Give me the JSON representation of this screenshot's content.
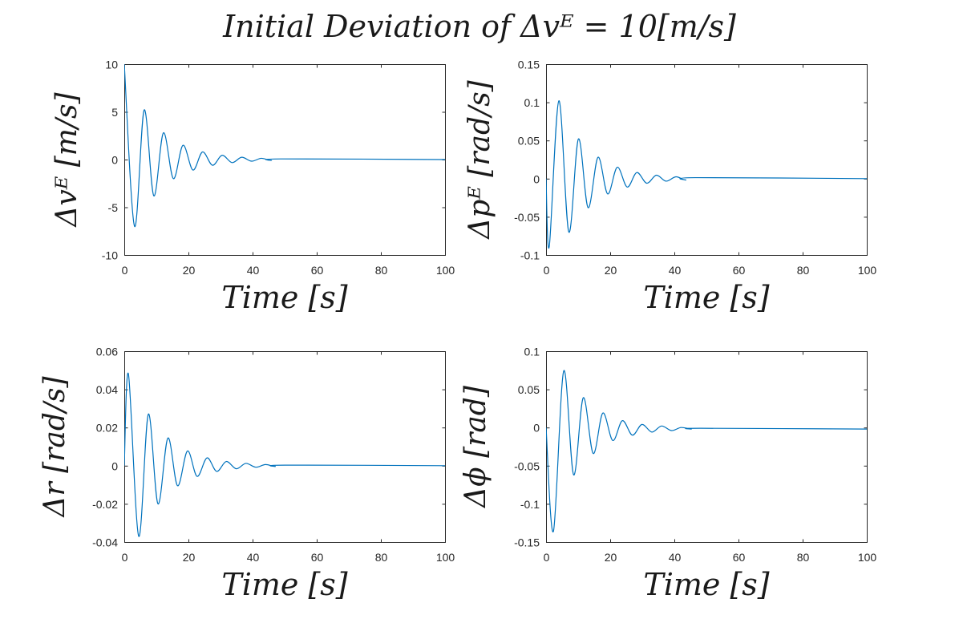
{
  "figure_title": "Initial Deviation of Δvᴱ = 10[m/s]",
  "colors": {
    "line": "#0072BD",
    "axes": "#262626",
    "background": "#ffffff"
  },
  "chart_data": [
    {
      "type": "line",
      "position": "top-left",
      "xlabel": "Time [s]",
      "ylabel": "Δvᴱ [m/s]",
      "xlim": [
        0,
        100
      ],
      "ylim": [
        -10,
        10
      ],
      "xticks": [
        0,
        20,
        40,
        60,
        80,
        100
      ],
      "yticks": [
        -10,
        -5,
        0,
        5,
        10
      ],
      "ytick_labels": [
        "-10",
        "-5",
        "0",
        "5",
        "10"
      ],
      "grid": false,
      "series": [
        {
          "x": [
            0,
            3.2,
            6.2,
            9.2,
            12.2,
            15.3,
            18.3,
            21.4,
            24.4,
            27.5,
            30.5,
            33.6,
            36.6,
            39.7,
            42.7,
            45.8,
            48.8,
            100
          ],
          "y": [
            10,
            -7.0,
            5.2,
            -3.8,
            2.8,
            -2.0,
            1.5,
            -1.1,
            0.8,
            -0.6,
            0.45,
            -0.32,
            0.24,
            -0.17,
            0.13,
            -0.09,
            0.07,
            0
          ]
        }
      ]
    },
    {
      "type": "line",
      "position": "top-right",
      "xlabel": "Time [s]",
      "ylabel": "Δpᴱ [rad/s]",
      "xlim": [
        0,
        100
      ],
      "ylim": [
        -0.1,
        0.15
      ],
      "xticks": [
        0,
        20,
        40,
        60,
        80,
        100
      ],
      "yticks": [
        -0.1,
        -0.05,
        0,
        0.05,
        0.1,
        0.15
      ],
      "ytick_labels": [
        "-0.1",
        "-0.05",
        "0",
        "0.05",
        "0.1",
        "0.15"
      ],
      "grid": false,
      "series": [
        {
          "x": [
            0,
            1.0,
            4.0,
            7.1,
            10.1,
            13.1,
            16.2,
            19.2,
            22.2,
            25.3,
            28.3,
            31.4,
            34.4,
            37.4,
            40.5,
            43.5,
            46.6,
            100
          ],
          "y": [
            0,
            -0.089,
            0.102,
            -0.07,
            0.052,
            -0.038,
            0.028,
            -0.02,
            0.015,
            -0.011,
            0.008,
            -0.006,
            0.0045,
            -0.0033,
            0.0024,
            -0.0018,
            0.0013,
            0
          ]
        }
      ]
    },
    {
      "type": "line",
      "position": "bottom-left",
      "xlabel": "Time [s]",
      "ylabel": "Δr [rad/s]",
      "xlim": [
        0,
        100
      ],
      "ylim": [
        -0.04,
        0.06
      ],
      "xticks": [
        0,
        20,
        40,
        60,
        80,
        100
      ],
      "yticks": [
        -0.04,
        -0.02,
        0,
        0.02,
        0.04,
        0.06
      ],
      "ytick_labels": [
        "-0.04",
        "-0.02",
        "0",
        "0.02",
        "0.04",
        "0.06"
      ],
      "grid": false,
      "series": [
        {
          "x": [
            0,
            1.3,
            4.5,
            7.5,
            10.5,
            13.6,
            16.6,
            19.7,
            22.7,
            25.8,
            28.8,
            31.8,
            34.9,
            37.9,
            41.0,
            44.0,
            47.0,
            50.1,
            100
          ],
          "y": [
            0,
            0.048,
            -0.037,
            0.027,
            -0.02,
            0.0145,
            -0.0105,
            0.0077,
            -0.0056,
            0.0041,
            -0.003,
            0.0022,
            -0.0016,
            0.0012,
            -0.0008,
            0.0006,
            -0.0004,
            0.0003,
            0
          ]
        }
      ]
    },
    {
      "type": "line",
      "position": "bottom-right",
      "xlabel": "Time [s]",
      "ylabel": "Δϕ [rad]",
      "xlim": [
        0,
        100
      ],
      "ylim": [
        -0.15,
        0.1
      ],
      "xticks": [
        0,
        20,
        40,
        60,
        80,
        100
      ],
      "yticks": [
        -0.15,
        -0.1,
        -0.05,
        0,
        0.05,
        0.1
      ],
      "ytick_labels": [
        "-0.15",
        "-0.1",
        "-0.05",
        "0",
        "0.05",
        "0.1"
      ],
      "grid": false,
      "series": [
        {
          "x": [
            0,
            2.3,
            5.5,
            8.6,
            11.6,
            14.7,
            17.7,
            20.8,
            23.8,
            26.9,
            29.9,
            33.0,
            36.0,
            39.1,
            42.1,
            45.2,
            48.2,
            100
          ],
          "y": [
            0,
            -0.136,
            0.074,
            -0.062,
            0.039,
            -0.034,
            0.019,
            -0.017,
            0.009,
            -0.01,
            0.004,
            -0.006,
            0.002,
            -0.004,
            0.0,
            -0.002,
            -0.001,
            -0.002
          ]
        }
      ]
    }
  ]
}
